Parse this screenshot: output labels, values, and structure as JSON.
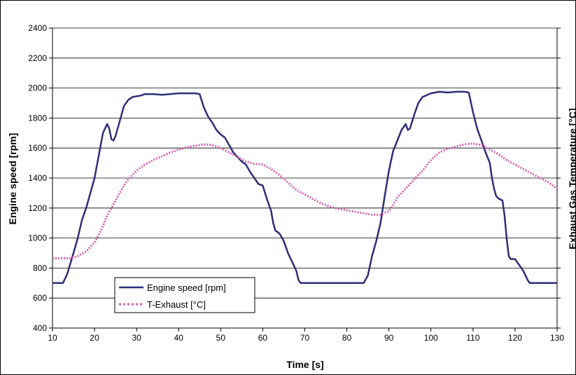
{
  "chart_data": {
    "type": "line",
    "xlabel": "Time [s]",
    "ylabel": "Engine speed [rpm]",
    "y2label": "Exhaust Gas Temperature [°C]",
    "xlim": [
      10,
      130
    ],
    "ylim": [
      400,
      2400
    ],
    "x_ticks": [
      10,
      20,
      30,
      40,
      50,
      60,
      70,
      80,
      90,
      100,
      110,
      120,
      130
    ],
    "y_ticks": [
      400,
      600,
      800,
      1000,
      1200,
      1400,
      1600,
      1800,
      2000,
      2200,
      2400
    ],
    "grid": "horizontal",
    "legend_position": "bottom-left",
    "series": [
      {
        "name": "Engine speed [rpm]",
        "color": "#2E2E7A",
        "style": "solid",
        "points": [
          [
            10,
            700
          ],
          [
            12.5,
            700
          ],
          [
            13.5,
            760
          ],
          [
            15,
            900
          ],
          [
            16,
            1000
          ],
          [
            17,
            1120
          ],
          [
            18,
            1200
          ],
          [
            19,
            1300
          ],
          [
            20,
            1400
          ],
          [
            21,
            1550
          ],
          [
            22,
            1700
          ],
          [
            23,
            1760
          ],
          [
            23.5,
            1730
          ],
          [
            24,
            1660
          ],
          [
            24.5,
            1650
          ],
          [
            25,
            1680
          ],
          [
            26,
            1780
          ],
          [
            27,
            1880
          ],
          [
            28,
            1920
          ],
          [
            29,
            1940
          ],
          [
            31,
            1950
          ],
          [
            32,
            1960
          ],
          [
            34,
            1960
          ],
          [
            36,
            1955
          ],
          [
            38,
            1960
          ],
          [
            40,
            1965
          ],
          [
            42,
            1965
          ],
          [
            44,
            1965
          ],
          [
            45,
            1960
          ],
          [
            46,
            1870
          ],
          [
            47,
            1810
          ],
          [
            48,
            1770
          ],
          [
            49,
            1720
          ],
          [
            50,
            1690
          ],
          [
            51,
            1670
          ],
          [
            52,
            1620
          ],
          [
            53,
            1570
          ],
          [
            54,
            1540
          ],
          [
            55,
            1510
          ],
          [
            56,
            1490
          ],
          [
            57,
            1440
          ],
          [
            58,
            1400
          ],
          [
            59,
            1360
          ],
          [
            60,
            1350
          ],
          [
            61,
            1260
          ],
          [
            62,
            1180
          ],
          [
            62.5,
            1100
          ],
          [
            63,
            1050
          ],
          [
            64,
            1030
          ],
          [
            65,
            980
          ],
          [
            66,
            900
          ],
          [
            67,
            840
          ],
          [
            68,
            780
          ],
          [
            68.5,
            720
          ],
          [
            69,
            700
          ],
          [
            70,
            700
          ],
          [
            75,
            700
          ],
          [
            80,
            700
          ],
          [
            84,
            700
          ],
          [
            85,
            750
          ],
          [
            86,
            880
          ],
          [
            87,
            980
          ],
          [
            88,
            1100
          ],
          [
            89,
            1280
          ],
          [
            90,
            1450
          ],
          [
            91,
            1580
          ],
          [
            92,
            1650
          ],
          [
            93,
            1720
          ],
          [
            94,
            1760
          ],
          [
            94.5,
            1720
          ],
          [
            95,
            1730
          ],
          [
            96,
            1820
          ],
          [
            97,
            1900
          ],
          [
            98,
            1940
          ],
          [
            100,
            1965
          ],
          [
            102,
            1975
          ],
          [
            104,
            1970
          ],
          [
            106,
            1975
          ],
          [
            108,
            1975
          ],
          [
            109,
            1970
          ],
          [
            110,
            1840
          ],
          [
            111,
            1730
          ],
          [
            112,
            1650
          ],
          [
            113,
            1570
          ],
          [
            114,
            1500
          ],
          [
            114.5,
            1400
          ],
          [
            115,
            1330
          ],
          [
            115.5,
            1280
          ],
          [
            116,
            1265
          ],
          [
            117,
            1250
          ],
          [
            117.5,
            1150
          ],
          [
            118,
            1000
          ],
          [
            118.5,
            880
          ],
          [
            119,
            860
          ],
          [
            120,
            860
          ],
          [
            121,
            820
          ],
          [
            122,
            780
          ],
          [
            123,
            720
          ],
          [
            123.5,
            700
          ],
          [
            125,
            700
          ],
          [
            130,
            700
          ]
        ]
      },
      {
        "name": "T-Exhaust [°C]",
        "color": "#D55FAF",
        "style": "dotted",
        "points": [
          [
            10,
            865
          ],
          [
            12,
            865
          ],
          [
            14,
            865
          ],
          [
            15,
            870
          ],
          [
            16,
            880
          ],
          [
            18,
            910
          ],
          [
            20,
            970
          ],
          [
            21,
            1020
          ],
          [
            22,
            1080
          ],
          [
            23,
            1150
          ],
          [
            24,
            1200
          ],
          [
            25,
            1250
          ],
          [
            26,
            1300
          ],
          [
            27,
            1350
          ],
          [
            28,
            1390
          ],
          [
            29,
            1420
          ],
          [
            30,
            1450
          ],
          [
            32,
            1490
          ],
          [
            34,
            1520
          ],
          [
            36,
            1545
          ],
          [
            38,
            1570
          ],
          [
            40,
            1590
          ],
          [
            42,
            1605
          ],
          [
            44,
            1615
          ],
          [
            46,
            1625
          ],
          [
            48,
            1620
          ],
          [
            50,
            1600
          ],
          [
            52,
            1570
          ],
          [
            54,
            1540
          ],
          [
            56,
            1510
          ],
          [
            58,
            1495
          ],
          [
            60,
            1490
          ],
          [
            62,
            1460
          ],
          [
            64,
            1420
          ],
          [
            66,
            1370
          ],
          [
            68,
            1320
          ],
          [
            70,
            1290
          ],
          [
            72,
            1260
          ],
          [
            74,
            1230
          ],
          [
            76,
            1210
          ],
          [
            78,
            1195
          ],
          [
            80,
            1185
          ],
          [
            82,
            1175
          ],
          [
            84,
            1165
          ],
          [
            86,
            1155
          ],
          [
            88,
            1155
          ],
          [
            90,
            1180
          ],
          [
            91,
            1220
          ],
          [
            92,
            1270
          ],
          [
            94,
            1330
          ],
          [
            96,
            1390
          ],
          [
            98,
            1450
          ],
          [
            100,
            1520
          ],
          [
            102,
            1570
          ],
          [
            104,
            1595
          ],
          [
            106,
            1610
          ],
          [
            108,
            1625
          ],
          [
            110,
            1630
          ],
          [
            112,
            1620
          ],
          [
            114,
            1590
          ],
          [
            116,
            1560
          ],
          [
            118,
            1520
          ],
          [
            120,
            1490
          ],
          [
            122,
            1460
          ],
          [
            124,
            1430
          ],
          [
            126,
            1400
          ],
          [
            128,
            1370
          ],
          [
            130,
            1330
          ]
        ]
      }
    ]
  }
}
